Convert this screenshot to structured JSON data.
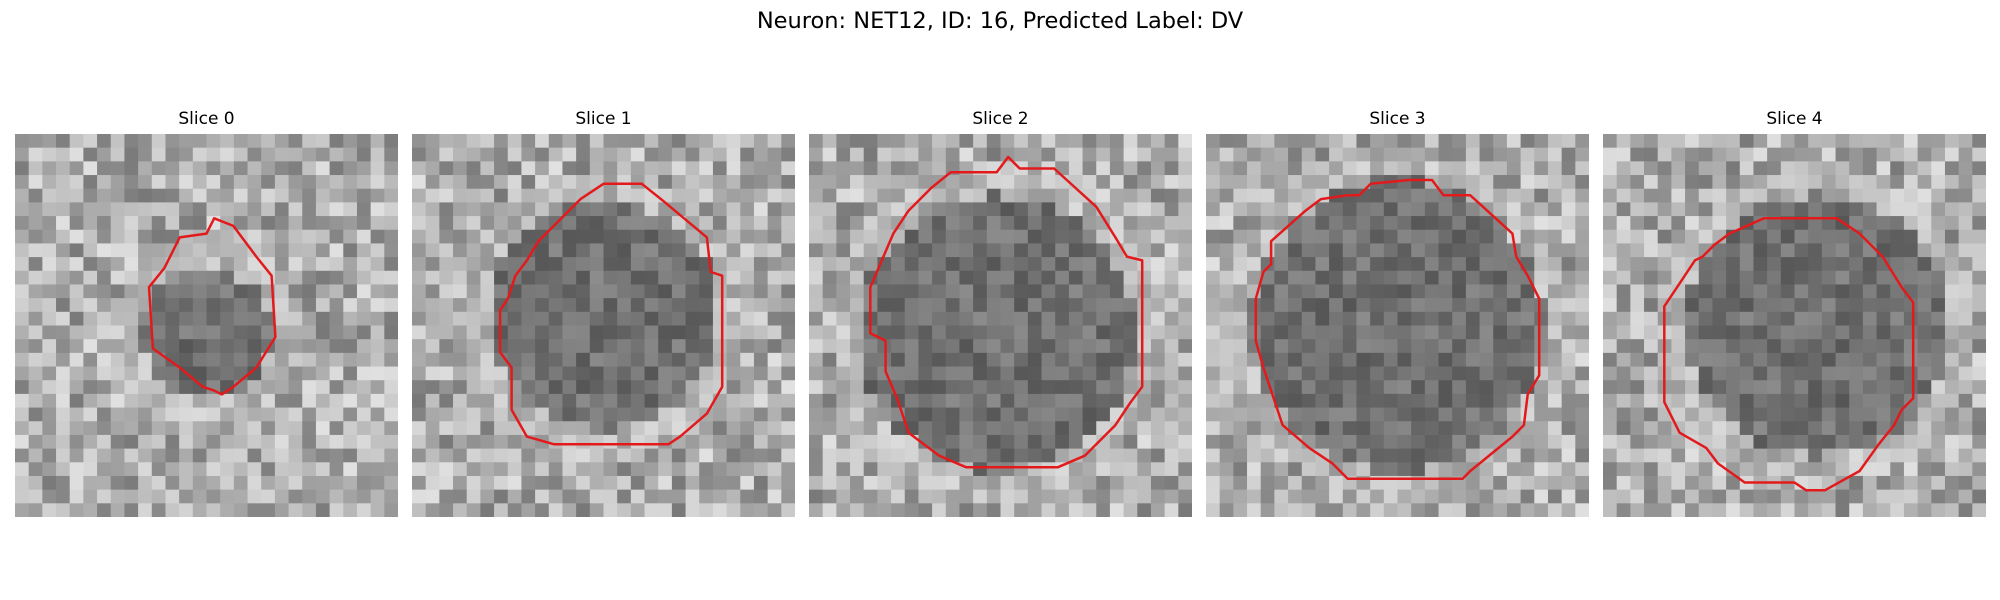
{
  "figure": {
    "title": "Neuron: NET12, ID: 16, Predicted Label: DV"
  },
  "outline_color": "#e31a1c",
  "panels": [
    {
      "title": "Slice 0",
      "seed": 11,
      "blob_radius": 0.17,
      "blob_cx": 0.5,
      "blob_cy": 0.52,
      "contour": [
        [
          0.52,
          0.22
        ],
        [
          0.57,
          0.24
        ],
        [
          0.63,
          0.32
        ],
        [
          0.67,
          0.37
        ],
        [
          0.68,
          0.53
        ],
        [
          0.63,
          0.61
        ],
        [
          0.57,
          0.66
        ],
        [
          0.54,
          0.68
        ],
        [
          0.52,
          0.67
        ],
        [
          0.49,
          0.66
        ],
        [
          0.43,
          0.61
        ],
        [
          0.36,
          0.56
        ],
        [
          0.35,
          0.4
        ],
        [
          0.39,
          0.35
        ],
        [
          0.43,
          0.27
        ],
        [
          0.5,
          0.26
        ]
      ]
    },
    {
      "title": "Slice 1",
      "seed": 23,
      "blob_radius": 0.3,
      "blob_cx": 0.5,
      "blob_cy": 0.47,
      "contour": [
        [
          0.5,
          0.13
        ],
        [
          0.6,
          0.13
        ],
        [
          0.65,
          0.17
        ],
        [
          0.77,
          0.27
        ],
        [
          0.78,
          0.36
        ],
        [
          0.81,
          0.37
        ],
        [
          0.81,
          0.66
        ],
        [
          0.77,
          0.73
        ],
        [
          0.7,
          0.79
        ],
        [
          0.67,
          0.81
        ],
        [
          0.37,
          0.81
        ],
        [
          0.3,
          0.79
        ],
        [
          0.26,
          0.72
        ],
        [
          0.26,
          0.61
        ],
        [
          0.23,
          0.57
        ],
        [
          0.23,
          0.46
        ],
        [
          0.25,
          0.43
        ],
        [
          0.27,
          0.37
        ],
        [
          0.3,
          0.33
        ],
        [
          0.33,
          0.28
        ],
        [
          0.44,
          0.17
        ]
      ]
    },
    {
      "title": "Slice 2",
      "seed": 37,
      "blob_radius": 0.36,
      "blob_cx": 0.49,
      "blob_cy": 0.52,
      "contour": [
        [
          0.52,
          0.06
        ],
        [
          0.55,
          0.09
        ],
        [
          0.64,
          0.09
        ],
        [
          0.75,
          0.19
        ],
        [
          0.8,
          0.27
        ],
        [
          0.83,
          0.32
        ],
        [
          0.87,
          0.33
        ],
        [
          0.87,
          0.66
        ],
        [
          0.84,
          0.7
        ],
        [
          0.8,
          0.76
        ],
        [
          0.72,
          0.84
        ],
        [
          0.65,
          0.87
        ],
        [
          0.41,
          0.87
        ],
        [
          0.34,
          0.84
        ],
        [
          0.26,
          0.78
        ],
        [
          0.23,
          0.69
        ],
        [
          0.2,
          0.62
        ],
        [
          0.2,
          0.54
        ],
        [
          0.16,
          0.52
        ],
        [
          0.16,
          0.4
        ],
        [
          0.19,
          0.33
        ],
        [
          0.22,
          0.26
        ],
        [
          0.26,
          0.2
        ],
        [
          0.32,
          0.14
        ],
        [
          0.37,
          0.1
        ],
        [
          0.49,
          0.1
        ]
      ]
    },
    {
      "title": "Slice 3",
      "seed": 53,
      "blob_radius": 0.38,
      "blob_cx": 0.5,
      "blob_cy": 0.5,
      "contour": [
        [
          0.53,
          0.12
        ],
        [
          0.59,
          0.12
        ],
        [
          0.62,
          0.16
        ],
        [
          0.69,
          0.16
        ],
        [
          0.8,
          0.26
        ],
        [
          0.81,
          0.32
        ],
        [
          0.84,
          0.37
        ],
        [
          0.87,
          0.43
        ],
        [
          0.87,
          0.63
        ],
        [
          0.84,
          0.68
        ],
        [
          0.83,
          0.76
        ],
        [
          0.8,
          0.79
        ],
        [
          0.69,
          0.88
        ],
        [
          0.67,
          0.9
        ],
        [
          0.37,
          0.9
        ],
        [
          0.33,
          0.86
        ],
        [
          0.27,
          0.82
        ],
        [
          0.2,
          0.76
        ],
        [
          0.17,
          0.67
        ],
        [
          0.15,
          0.61
        ],
        [
          0.13,
          0.54
        ],
        [
          0.13,
          0.43
        ],
        [
          0.15,
          0.36
        ],
        [
          0.17,
          0.34
        ],
        [
          0.17,
          0.28
        ],
        [
          0.26,
          0.2
        ],
        [
          0.3,
          0.17
        ],
        [
          0.37,
          0.16
        ],
        [
          0.4,
          0.16
        ],
        [
          0.43,
          0.13
        ]
      ]
    },
    {
      "title": "Slice 4",
      "seed": 71,
      "blob_radius": 0.34,
      "blob_cx": 0.56,
      "blob_cy": 0.5,
      "contour": [
        [
          0.42,
          0.22
        ],
        [
          0.61,
          0.22
        ],
        [
          0.67,
          0.26
        ],
        [
          0.73,
          0.32
        ],
        [
          0.78,
          0.4
        ],
        [
          0.81,
          0.44
        ],
        [
          0.81,
          0.69
        ],
        [
          0.78,
          0.72
        ],
        [
          0.76,
          0.76
        ],
        [
          0.72,
          0.81
        ],
        [
          0.67,
          0.88
        ],
        [
          0.58,
          0.93
        ],
        [
          0.53,
          0.93
        ],
        [
          0.5,
          0.91
        ],
        [
          0.37,
          0.91
        ],
        [
          0.3,
          0.86
        ],
        [
          0.27,
          0.82
        ],
        [
          0.2,
          0.78
        ],
        [
          0.16,
          0.7
        ],
        [
          0.16,
          0.45
        ],
        [
          0.2,
          0.39
        ],
        [
          0.24,
          0.33
        ],
        [
          0.26,
          0.32
        ],
        [
          0.29,
          0.29
        ],
        [
          0.33,
          0.26
        ]
      ]
    }
  ]
}
